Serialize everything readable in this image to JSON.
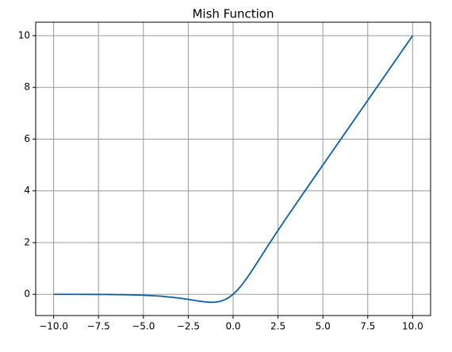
{
  "chart_data": {
    "type": "line",
    "title": "Mish Function",
    "x": [
      -10,
      -9,
      -8,
      -7,
      -6,
      -5,
      -4,
      -3,
      -2.5,
      -2,
      -1.5,
      -1.25,
      -1,
      -0.75,
      -0.5,
      -0.25,
      0,
      0.25,
      0.5,
      0.75,
      1,
      1.5,
      2,
      2.5,
      3,
      4,
      5,
      6,
      8,
      10
    ],
    "series": [
      {
        "color": "#0a5fa3",
        "values": [
          -0.0005,
          -0.0011,
          -0.0027,
          -0.0064,
          -0.0149,
          -0.0336,
          -0.0726,
          -0.1456,
          -0.1968,
          -0.2525,
          -0.2981,
          -0.3084,
          -0.3034,
          -0.2765,
          -0.2207,
          -0.1299,
          0,
          0.1695,
          0.3752,
          0.6099,
          0.8651,
          1.4033,
          1.944,
          2.4717,
          2.9866,
          3.9974,
          4.9996,
          6.0,
          8.0,
          10.0
        ]
      }
    ],
    "xlim": [
      -11,
      11
    ],
    "xticks": [
      {
        "value": -10,
        "label": "−10.0"
      },
      {
        "value": -7.5,
        "label": "−7.5"
      },
      {
        "value": -5,
        "label": "−5.0"
      },
      {
        "value": -2.5,
        "label": "−2.5"
      },
      {
        "value": 0,
        "label": "0.0"
      },
      {
        "value": 2.5,
        "label": "2.5"
      },
      {
        "value": 5,
        "label": "5.0"
      },
      {
        "value": 7.5,
        "label": "7.5"
      },
      {
        "value": 10,
        "label": "10.0"
      }
    ],
    "ylim": [
      -0.82,
      10.52
    ],
    "yticks": [
      0,
      2,
      4,
      6,
      8,
      10
    ],
    "grid": true
  }
}
